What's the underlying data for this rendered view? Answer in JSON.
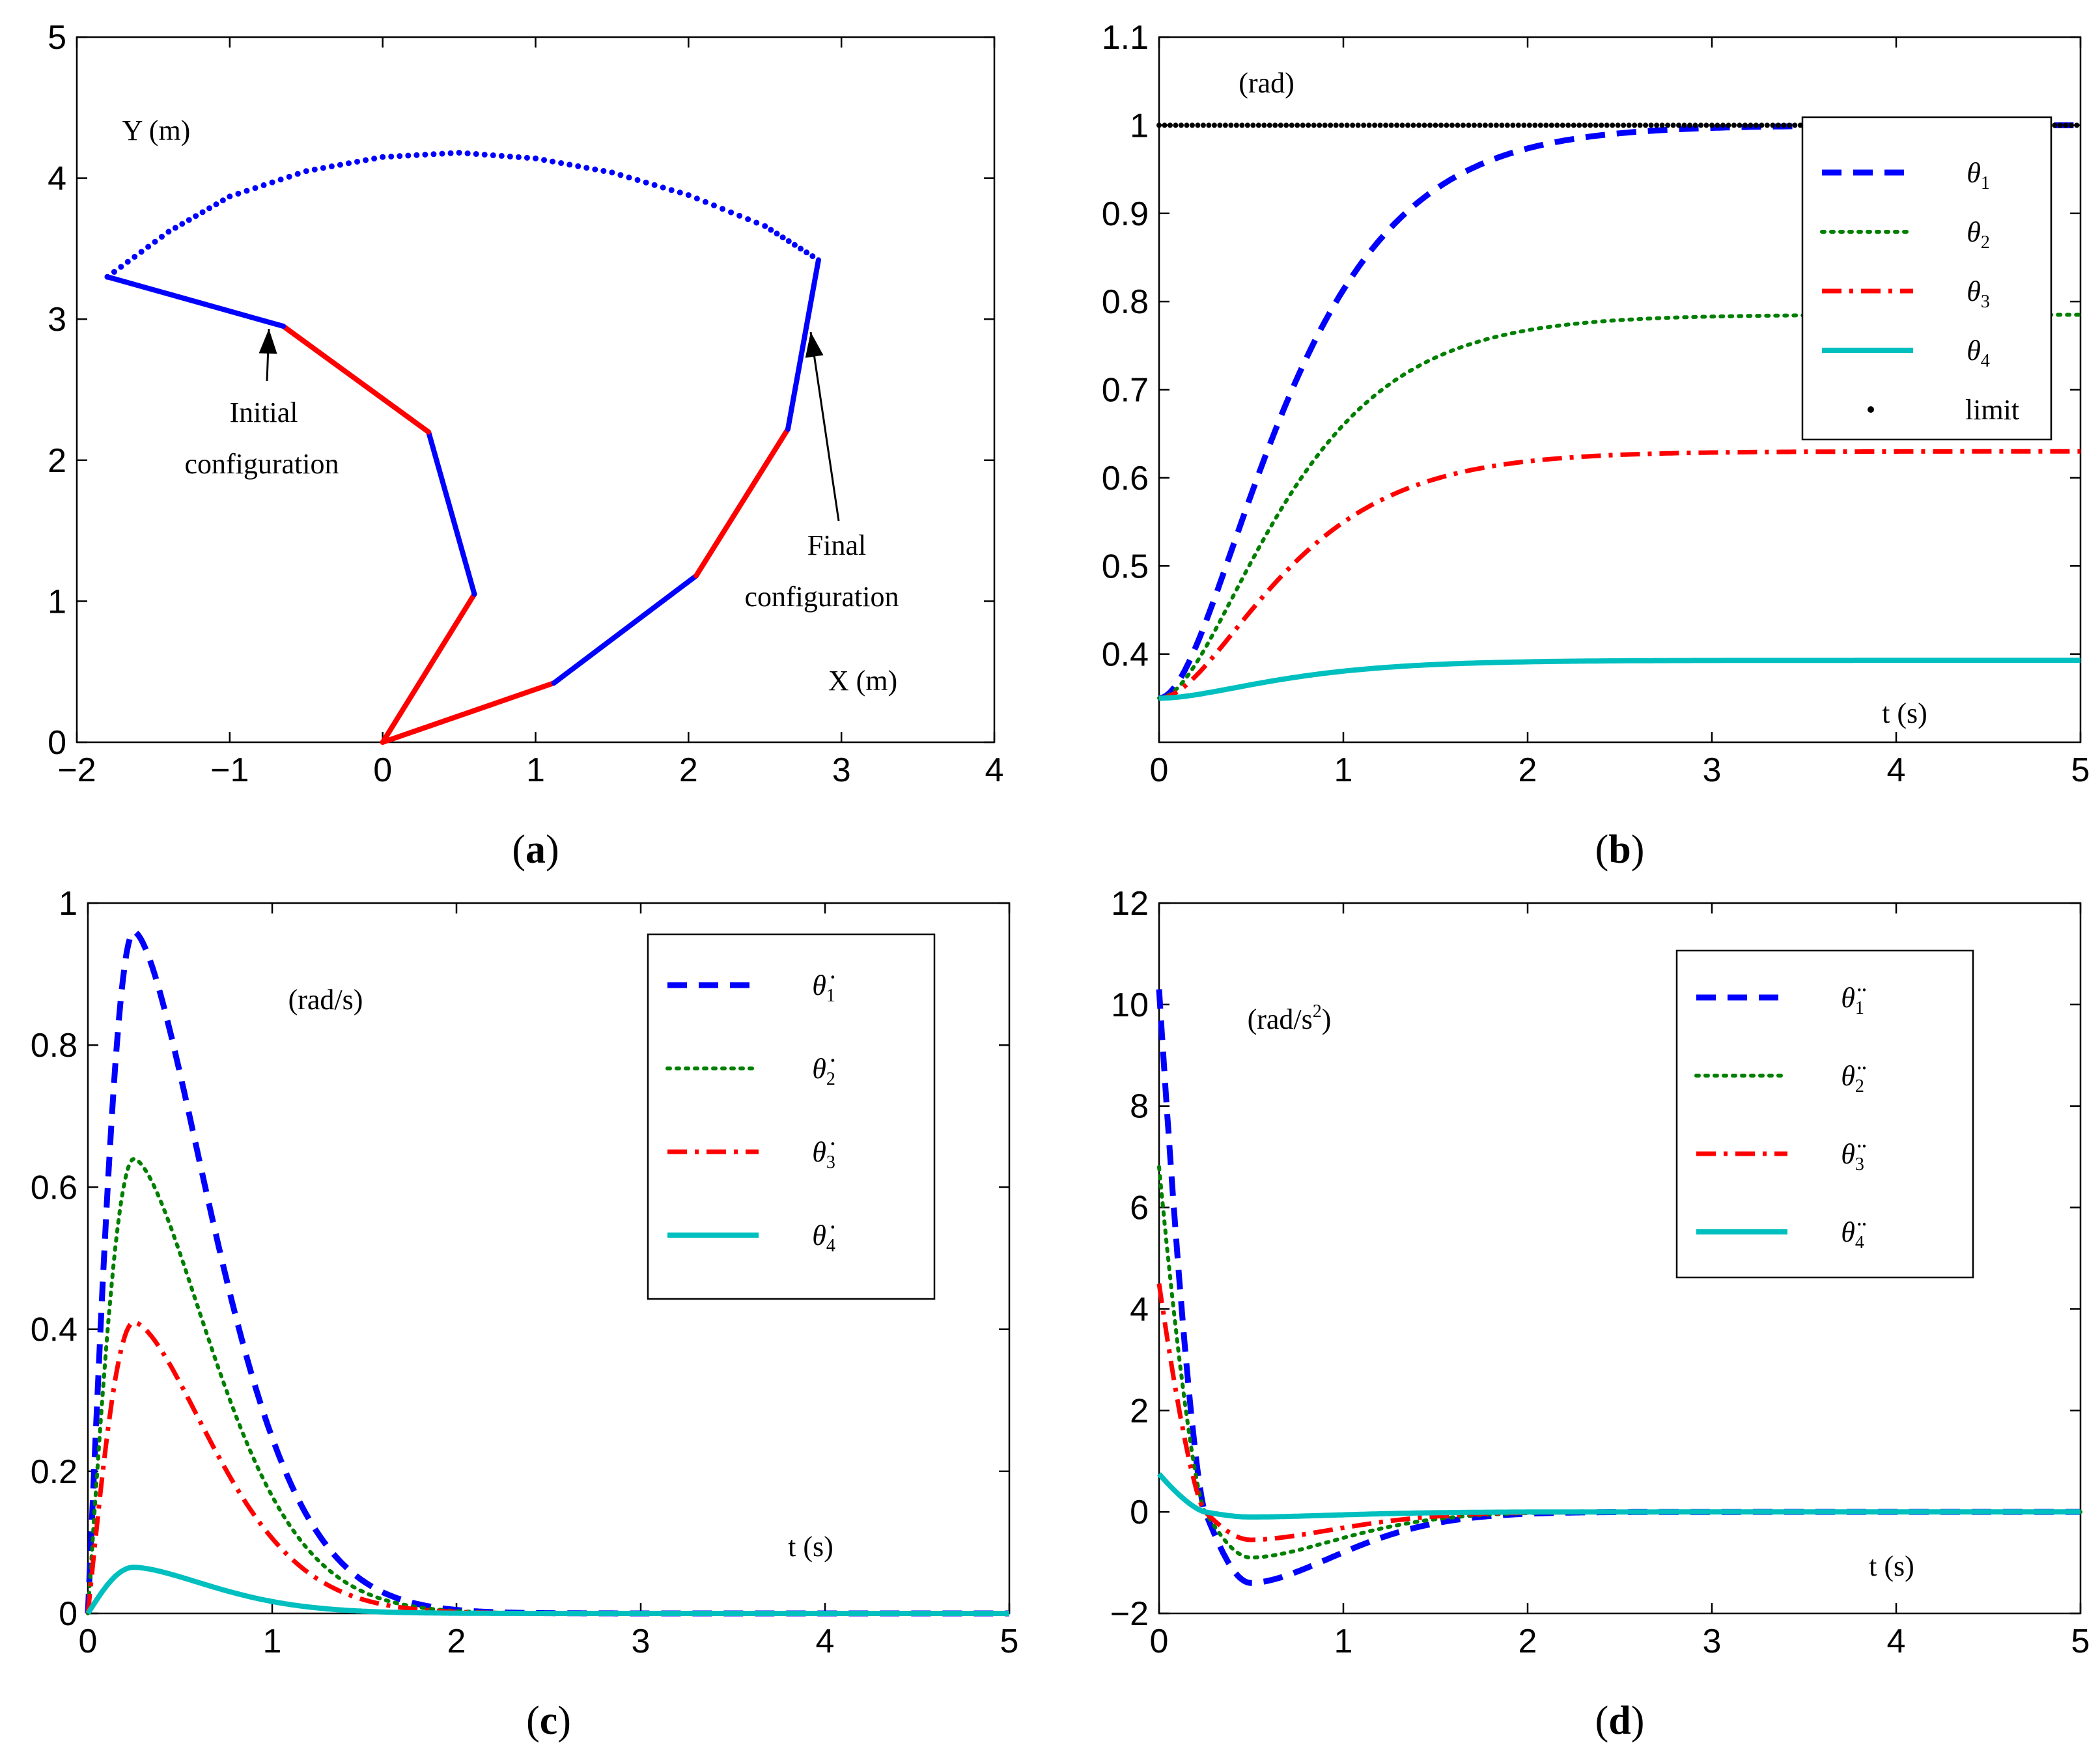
{
  "chart_data": [
    {
      "id": "a",
      "type": "line",
      "caption": "a",
      "xlabel": "X (m)",
      "ylabel": "Y (m)",
      "xlim": [
        -2,
        4
      ],
      "ylim": [
        0,
        5
      ],
      "xticks": [
        "−2",
        "−1",
        "0",
        "1",
        "2",
        "3",
        "4"
      ],
      "yticks": [
        "0",
        "1",
        "2",
        "3",
        "4",
        "5"
      ],
      "annotations": [
        {
          "lines": [
            "Initial",
            "configuration"
          ],
          "points_to": [
            -0.65,
            2.95
          ]
        },
        {
          "lines": [
            "Final",
            "configuration"
          ],
          "points_to": [
            2.8,
            2.8
          ]
        }
      ],
      "series": [
        {
          "name": "initial configuration",
          "colors": [
            "#ff0000",
            "#0000ff",
            "#ff0000",
            "#0000ff"
          ],
          "points": [
            [
              0,
              0
            ],
            [
              0.6,
              1.05
            ],
            [
              0.3,
              2.2
            ],
            [
              -0.65,
              2.95
            ],
            [
              -1.8,
              3.3
            ]
          ]
        },
        {
          "name": "final configuration",
          "colors": [
            "#ff0000",
            "#0000ff",
            "#ff0000",
            "#0000ff"
          ],
          "points": [
            [
              0,
              0
            ],
            [
              1.12,
              0.42
            ],
            [
              2.05,
              1.18
            ],
            [
              2.65,
              2.22
            ],
            [
              2.85,
              3.42
            ]
          ]
        },
        {
          "name": "end-effector path",
          "color": "#0000ff",
          "style": "dots",
          "points": [
            [
              -1.8,
              3.3
            ],
            [
              -1.4,
              3.62
            ],
            [
              -1.0,
              3.87
            ],
            [
              -0.5,
              4.05
            ],
            [
              0.0,
              4.15
            ],
            [
              0.5,
              4.18
            ],
            [
              1.0,
              4.14
            ],
            [
              1.5,
              4.04
            ],
            [
              2.0,
              3.88
            ],
            [
              2.5,
              3.66
            ],
            [
              2.85,
              3.42
            ]
          ]
        }
      ]
    },
    {
      "id": "b",
      "type": "line",
      "caption": "b",
      "xlabel": "t (s)",
      "ylabel": "(rad)",
      "xlim": [
        0,
        5
      ],
      "ylim": [
        0.3,
        1.1
      ],
      "xticks": [
        "0",
        "1",
        "2",
        "3",
        "4",
        "5"
      ],
      "yticks": [
        "0.4",
        "0.5",
        "0.6",
        "0.7",
        "0.8",
        "0.9",
        "1",
        "1.1"
      ],
      "legend_position": "top-right",
      "series": [
        {
          "name": "θ1",
          "color": "#0000ff",
          "style": "dashed",
          "start": 0.35,
          "final": 1.0,
          "k": 2.5
        },
        {
          "name": "θ2",
          "color": "#007f00",
          "style": "dotted",
          "start": 0.35,
          "final": 0.785,
          "k": 2.5
        },
        {
          "name": "θ3",
          "color": "#ff0000",
          "style": "dashdot",
          "start": 0.35,
          "final": 0.63,
          "k": 2.5
        },
        {
          "name": "θ4",
          "color": "#00bfbf",
          "style": "solid",
          "start": 0.35,
          "final": 0.393,
          "k": 2.5
        },
        {
          "name": "limit",
          "color": "#000000",
          "style": "dots",
          "constant": 1.0
        }
      ]
    },
    {
      "id": "c",
      "type": "line",
      "caption": "c",
      "xlabel": "t (s)",
      "ylabel": "(rad/s)",
      "xlim": [
        0,
        5
      ],
      "ylim": [
        0,
        1
      ],
      "xticks": [
        "0",
        "1",
        "2",
        "3",
        "4",
        "5"
      ],
      "yticks": [
        "0",
        "0.2",
        "0.4",
        "0.6",
        "0.8",
        "1"
      ],
      "legend_position": "top-right",
      "series": [
        {
          "name": "θ̇1",
          "color": "#0000ff",
          "style": "dashed",
          "peak": 0.96,
          "peak_time": 0.25
        },
        {
          "name": "θ̇2",
          "color": "#007f00",
          "style": "dotted",
          "peak": 0.64,
          "peak_time": 0.25
        },
        {
          "name": "θ̇3",
          "color": "#ff0000",
          "style": "dashdot",
          "peak": 0.41,
          "peak_time": 0.25
        },
        {
          "name": "θ̇4",
          "color": "#00bfbf",
          "style": "solid",
          "peak": 0.065,
          "peak_time": 0.25
        }
      ]
    },
    {
      "id": "d",
      "type": "line",
      "caption": "d",
      "xlabel": "t (s)",
      "ylabel": "(rad/s2)",
      "ylabel_parts": [
        "(rad/s",
        "2",
        ")"
      ],
      "xlim": [
        0,
        5
      ],
      "ylim": [
        -2,
        12
      ],
      "xticks": [
        "0",
        "1",
        "2",
        "3",
        "4",
        "5"
      ],
      "yticks": [
        "−2",
        "0",
        "2",
        "4",
        "6",
        "8",
        "10",
        "12"
      ],
      "legend_position": "top-right",
      "series": [
        {
          "name": "θ̈1",
          "color": "#0000ff",
          "style": "dashed",
          "initial": 10.3,
          "min": -1.4,
          "min_time": 0.5
        },
        {
          "name": "θ̈2",
          "color": "#007f00",
          "style": "dotted",
          "initial": 6.8,
          "min": -0.9,
          "min_time": 0.5
        },
        {
          "name": "θ̈3",
          "color": "#ff0000",
          "style": "dashdot",
          "initial": 4.5,
          "min": -0.55,
          "min_time": 0.5
        },
        {
          "name": "θ̈4",
          "color": "#00bfbf",
          "style": "solid",
          "initial": 0.75,
          "min": -0.1,
          "min_time": 0.5
        }
      ]
    }
  ]
}
